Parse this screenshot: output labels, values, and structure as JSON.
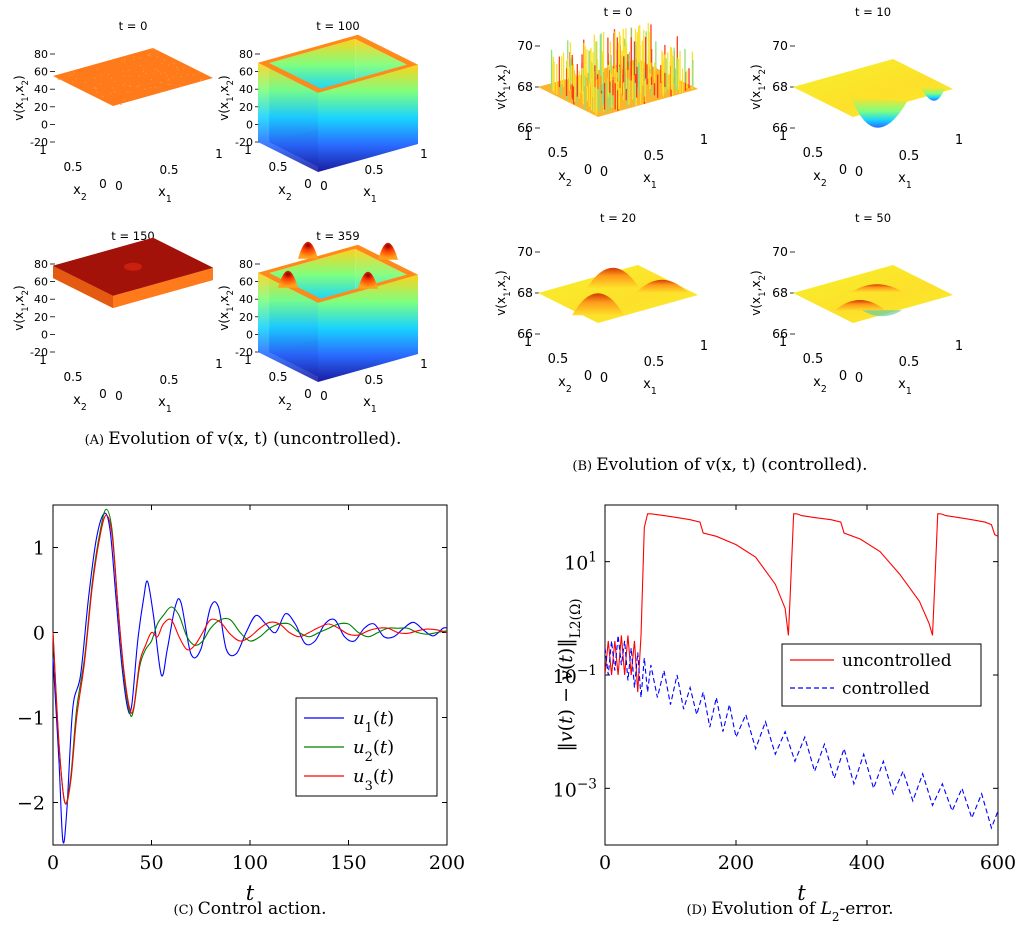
{
  "chart_data": [
    {
      "type": "surface3d",
      "panel_caption": "(A) Evolution of v(x, t) (uncontrolled).",
      "subplots": [
        {
          "title": "t = 0",
          "zlabel": "v(x1,x2)",
          "xlabel": "x1",
          "ylabel": "x2",
          "zticks": [
            "80",
            "60",
            "40",
            "20",
            "0",
            "-20"
          ],
          "xticks": [
            "0",
            "0.5",
            "1"
          ],
          "yticks": [
            "0",
            "0.5",
            "1"
          ],
          "zlim": [
            -20,
            80
          ],
          "surface": "flat",
          "level": 55,
          "color": "#ff7a1a"
        },
        {
          "title": "t = 100",
          "zlabel": "v(x1,x2)",
          "xlabel": "x1",
          "ylabel": "x2",
          "zticks": [
            "80",
            "60",
            "40",
            "20",
            "0",
            "-20"
          ],
          "xticks": [
            "0",
            "0.5",
            "1"
          ],
          "yticks": [
            "0",
            "0.5",
            "1"
          ],
          "zlim": [
            -20,
            80
          ],
          "surface": "walls",
          "level": -20,
          "wall_top": 70
        },
        {
          "title": "t = 150",
          "zlabel": "v(x1,x2)",
          "xlabel": "x1",
          "ylabel": "x2",
          "zticks": [
            "80",
            "60",
            "40",
            "20",
            "0",
            "-20"
          ],
          "xticks": [
            "0",
            "0.5",
            "1"
          ],
          "yticks": [
            "0",
            "0.5",
            "1"
          ],
          "zlim": [
            -20,
            80
          ],
          "surface": "plateau",
          "level": 78,
          "color": "#a31208"
        },
        {
          "title": "t = 359",
          "zlabel": "v(x1,x2)",
          "xlabel": "x1",
          "ylabel": "x2",
          "zticks": [
            "80",
            "60",
            "40",
            "20",
            "0",
            "-20"
          ],
          "xticks": [
            "0",
            "0.5",
            "1"
          ],
          "yticks": [
            "0",
            "0.5",
            "1"
          ],
          "zlim": [
            -20,
            80
          ],
          "surface": "walls-peaks",
          "level": -20,
          "wall_top": 70
        }
      ]
    },
    {
      "type": "surface3d",
      "panel_caption": "(B) Evolution of v(x, t) (controlled).",
      "subplots": [
        {
          "title": "t = 0",
          "zlabel": "v(x1,x2)",
          "xlabel": "x1",
          "ylabel": "x2",
          "zticks": [
            "70",
            "68",
            "66"
          ],
          "xticks": [
            "0",
            "0.5",
            "1"
          ],
          "yticks": [
            "0",
            "0.5",
            "1"
          ],
          "zlim": [
            66,
            70
          ],
          "surface": "noisy"
        },
        {
          "title": "t = 10",
          "zlabel": "v(x1,x2)",
          "xlabel": "x1",
          "ylabel": "x2",
          "zticks": [
            "70",
            "68",
            "66"
          ],
          "xticks": [
            "0",
            "0.5",
            "1"
          ],
          "yticks": [
            "0",
            "0.5",
            "1"
          ],
          "zlim": [
            66,
            70
          ],
          "surface": "dip"
        },
        {
          "title": "t = 20",
          "zlabel": "v(x1,x2)",
          "xlabel": "x1",
          "ylabel": "x2",
          "zticks": [
            "70",
            "68",
            "66"
          ],
          "xticks": [
            "0",
            "0.5",
            "1"
          ],
          "yticks": [
            "0",
            "0.5",
            "1"
          ],
          "zlim": [
            66,
            70
          ],
          "surface": "smooth"
        },
        {
          "title": "t = 50",
          "zlabel": "v(x1,x2)",
          "xlabel": "x1",
          "ylabel": "x2",
          "zticks": [
            "70",
            "68",
            "66"
          ],
          "xticks": [
            "0",
            "0.5",
            "1"
          ],
          "yticks": [
            "0",
            "0.5",
            "1"
          ],
          "zlim": [
            66,
            70
          ],
          "surface": "flatter"
        }
      ]
    },
    {
      "type": "line",
      "panel_caption": "(C) Control action.",
      "xlabel": "t",
      "xlim": [
        0,
        200
      ],
      "ylim": [
        -2.5,
        1.5
      ],
      "xticks": [
        0,
        50,
        100,
        150,
        200
      ],
      "yticks": [
        1,
        0,
        -1,
        -2
      ],
      "legend_position": "bottom-right",
      "series": [
        {
          "name": "u1(t)",
          "color": "#0000ff",
          "x": [
            0,
            3,
            5,
            7,
            10,
            14,
            18,
            22,
            26,
            29,
            32,
            35,
            38,
            40,
            43,
            46,
            48,
            51,
            55,
            58,
            62,
            65,
            70,
            75,
            80,
            84,
            88,
            93,
            98,
            103,
            108,
            113,
            118,
            123,
            128,
            133,
            138,
            143,
            148,
            153,
            158,
            163,
            168,
            173,
            178,
            183,
            188,
            193,
            198,
            200
          ],
          "y": [
            -0.3,
            -1.5,
            -2.45,
            -2.1,
            -0.9,
            -0.5,
            0.4,
            1.1,
            1.4,
            1.2,
            0.4,
            -0.4,
            -0.9,
            -0.85,
            -0.1,
            0.4,
            0.6,
            0.2,
            -0.5,
            -0.2,
            0.3,
            0.35,
            -0.25,
            -0.2,
            0.3,
            0.3,
            -0.2,
            -0.25,
            0.0,
            0.2,
            0.1,
            0.0,
            0.22,
            0.1,
            -0.13,
            -0.1,
            0.1,
            0.15,
            -0.05,
            -0.1,
            0.05,
            0.1,
            -0.05,
            -0.05,
            0.05,
            0.12,
            0.03,
            -0.04,
            0.05,
            0.05
          ]
        },
        {
          "name": "u2(t)",
          "color": "#008000",
          "x": [
            0,
            3,
            6,
            9,
            12,
            16,
            20,
            24,
            27,
            30,
            33,
            36,
            39,
            41,
            44,
            47,
            50,
            53,
            56,
            60,
            64,
            68,
            72,
            76,
            80,
            85,
            90,
            95,
            100,
            105,
            110,
            115,
            120,
            125,
            130,
            135,
            140,
            145,
            150,
            155,
            160,
            165,
            170,
            175,
            180,
            185,
            190,
            195,
            200
          ],
          "y": [
            0,
            -1.3,
            -2.0,
            -1.7,
            -0.9,
            -0.3,
            0.6,
            1.2,
            1.45,
            1.2,
            0.3,
            -0.5,
            -0.95,
            -0.9,
            -0.4,
            -0.2,
            -0.1,
            0.1,
            0.2,
            0.3,
            0.2,
            -0.05,
            -0.15,
            -0.1,
            0.05,
            0.15,
            0.15,
            0.0,
            -0.1,
            -0.05,
            0.05,
            0.1,
            0.1,
            0.0,
            -0.05,
            0.0,
            0.05,
            0.1,
            0.1,
            0.0,
            -0.05,
            0.0,
            0.05,
            0.05,
            0.05,
            0.0,
            -0.02,
            0.0,
            0.02
          ]
        },
        {
          "name": "u3(t)",
          "color": "#ff0000",
          "x": [
            0,
            3,
            6,
            9,
            12,
            16,
            20,
            24,
            27,
            30,
            33,
            36,
            39,
            41,
            44,
            47,
            50,
            53,
            56,
            60,
            64,
            68,
            72,
            76,
            80,
            85,
            90,
            95,
            100,
            105,
            110,
            115,
            120,
            125,
            130,
            135,
            140,
            145,
            150,
            155,
            160,
            165,
            170,
            175,
            180,
            185,
            190,
            195,
            200
          ],
          "y": [
            0,
            -1.3,
            -2.0,
            -1.75,
            -1.0,
            -0.35,
            0.55,
            1.15,
            1.38,
            1.15,
            0.3,
            -0.45,
            -0.9,
            -0.88,
            -0.35,
            -0.15,
            0.0,
            -0.05,
            0.1,
            0.15,
            -0.05,
            -0.2,
            -0.15,
            0.0,
            0.15,
            0.12,
            -0.02,
            -0.1,
            -0.05,
            0.05,
            0.12,
            0.1,
            0.0,
            -0.05,
            0.0,
            0.06,
            0.1,
            0.05,
            -0.02,
            -0.03,
            0.02,
            0.05,
            0.05,
            0.0,
            -0.01,
            0.02,
            0.04,
            0.03,
            0.0
          ]
        }
      ]
    },
    {
      "type": "line",
      "panel_caption": "(D) Evolution of L2-error.",
      "xlabel": "t",
      "ylabel": "||v(t) − v̄(t)||L2(Ω)",
      "yscale": "log",
      "xlim": [
        0,
        600
      ],
      "ylim": [
        0.0001,
        100
      ],
      "xticks": [
        0,
        200,
        400,
        600
      ],
      "yticks": [
        "10^1",
        "10^-1",
        "10^-3"
      ],
      "legend_position": "center-right",
      "series": [
        {
          "name": "uncontrolled",
          "color": "#ff0000",
          "style": "solid",
          "x": [
            0,
            5,
            10,
            15,
            20,
            25,
            30,
            35,
            40,
            45,
            50,
            55,
            60,
            65,
            70,
            90,
            110,
            130,
            145,
            150,
            170,
            200,
            230,
            260,
            275,
            280,
            283,
            288,
            292,
            296,
            300,
            320,
            345,
            360,
            365,
            390,
            420,
            450,
            480,
            495,
            500,
            503,
            508,
            512,
            516,
            520,
            540,
            560,
            580,
            590,
            595,
            600
          ],
          "y": [
            0.1,
            0.4,
            0.1,
            0.4,
            0.1,
            0.5,
            0.1,
            0.5,
            0.1,
            0.4,
            0.05,
            0.5,
            40,
            70,
            70,
            65,
            60,
            55,
            50,
            32,
            28,
            20,
            12,
            4,
            1.5,
            0.5,
            3,
            70,
            70,
            68,
            65,
            60,
            55,
            50,
            32,
            25,
            15,
            6,
            2,
            0.8,
            0.5,
            3,
            70,
            70,
            68,
            65,
            60,
            55,
            50,
            45,
            30,
            28
          ]
        },
        {
          "name": "controlled",
          "color": "#0000ff",
          "style": "dashed",
          "x": [
            0,
            5,
            10,
            15,
            20,
            25,
            30,
            35,
            40,
            45,
            50,
            55,
            60,
            65,
            70,
            80,
            90,
            100,
            110,
            120,
            130,
            140,
            150,
            160,
            170,
            180,
            190,
            200,
            215,
            230,
            245,
            260,
            275,
            290,
            305,
            320,
            335,
            350,
            365,
            380,
            395,
            410,
            425,
            440,
            455,
            470,
            485,
            500,
            515,
            530,
            545,
            560,
            575,
            590,
            600
          ],
          "y": [
            0.3,
            0.1,
            0.4,
            0.12,
            0.5,
            0.15,
            0.4,
            0.08,
            0.3,
            0.06,
            0.25,
            0.04,
            0.2,
            0.05,
            0.15,
            0.04,
            0.12,
            0.03,
            0.1,
            0.025,
            0.06,
            0.02,
            0.05,
            0.012,
            0.04,
            0.01,
            0.03,
            0.008,
            0.02,
            0.005,
            0.015,
            0.004,
            0.01,
            0.003,
            0.008,
            0.002,
            0.006,
            0.0015,
            0.005,
            0.0012,
            0.004,
            0.001,
            0.003,
            0.0008,
            0.002,
            0.0006,
            0.0018,
            0.0005,
            0.0012,
            0.0004,
            0.001,
            0.0003,
            0.0008,
            0.0002,
            0.0004
          ]
        }
      ]
    }
  ]
}
